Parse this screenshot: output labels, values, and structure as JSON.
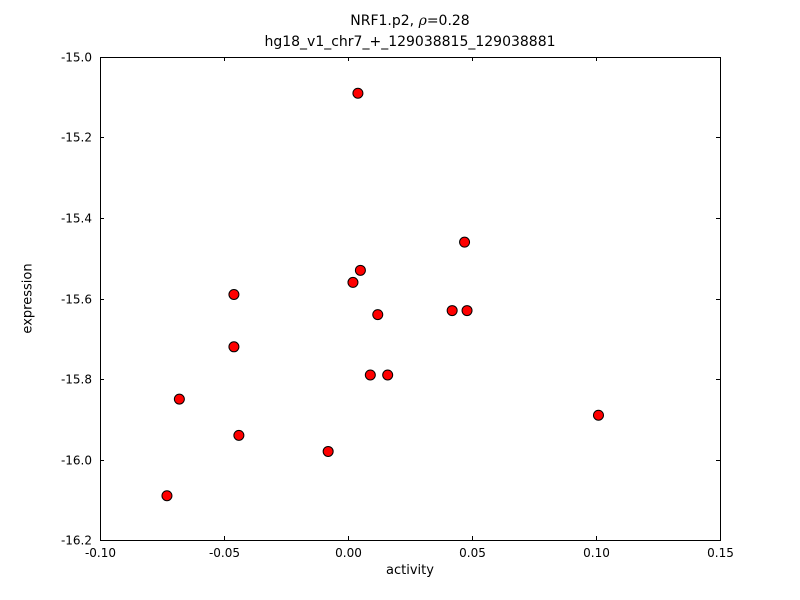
{
  "figure": {
    "title_line1_prefix": "NRF1.p2, ",
    "title_line1_rho": "ρ",
    "title_line1_value": "=0.28",
    "title_line2": "hg18_v1_chr7_+_129038815_129038881",
    "xlabel": "activity",
    "ylabel": "expression"
  },
  "chart_data": {
    "type": "scatter",
    "title": "NRF1.p2, ρ=0.28",
    "subtitle": "hg18_v1_chr7_+_129038815_129038881",
    "xlabel": "activity",
    "ylabel": "expression",
    "xlim": [
      -0.1,
      0.15
    ],
    "ylim": [
      -16.2,
      -15.0
    ],
    "grid": false,
    "legend": "none",
    "xticks": [
      {
        "value": -0.1,
        "label": "-0.10"
      },
      {
        "value": -0.05,
        "label": "-0.05"
      },
      {
        "value": 0.0,
        "label": "0.00"
      },
      {
        "value": 0.05,
        "label": "0.05"
      },
      {
        "value": 0.1,
        "label": "0.10"
      },
      {
        "value": 0.15,
        "label": "0.15"
      }
    ],
    "yticks": [
      {
        "value": -15.0,
        "label": "-15.0"
      },
      {
        "value": -15.2,
        "label": "-15.2"
      },
      {
        "value": -15.4,
        "label": "-15.4"
      },
      {
        "value": -15.6,
        "label": "-15.6"
      },
      {
        "value": -15.8,
        "label": "-15.8"
      },
      {
        "value": -16.0,
        "label": "-16.0"
      },
      {
        "value": -16.2,
        "label": "-16.2"
      }
    ],
    "points": [
      [
        0.004,
        -15.09
      ],
      [
        0.047,
        -15.46
      ],
      [
        0.005,
        -15.53
      ],
      [
        0.002,
        -15.56
      ],
      [
        -0.046,
        -15.59
      ],
      [
        0.012,
        -15.64
      ],
      [
        0.042,
        -15.63
      ],
      [
        0.048,
        -15.63
      ],
      [
        -0.046,
        -15.72
      ],
      [
        0.009,
        -15.79
      ],
      [
        0.016,
        -15.79
      ],
      [
        -0.068,
        -15.85
      ],
      [
        0.101,
        -15.89
      ],
      [
        -0.044,
        -15.94
      ],
      [
        -0.008,
        -15.98
      ],
      [
        -0.073,
        -16.09
      ]
    ],
    "marker": {
      "shape": "circle",
      "fill": "#ff0000",
      "stroke": "#000000",
      "stroke_width": 1,
      "radius": 5
    },
    "frame_color": "#000000",
    "background": "#ffffff",
    "tick_length": 4,
    "tick_direction": "in"
  }
}
